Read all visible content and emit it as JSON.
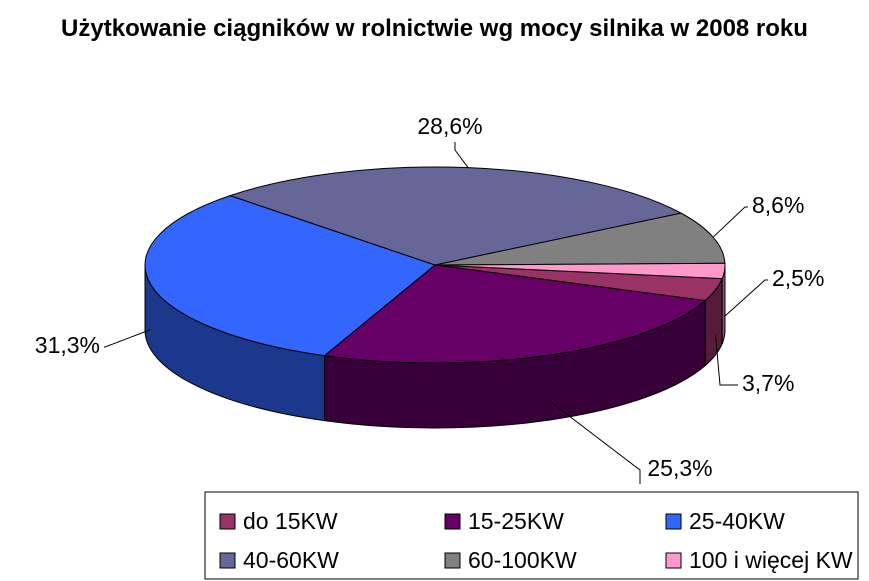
{
  "chart_data": {
    "type": "pie3d",
    "title": "Użytkowanie ciągników w rolnictwie wg mocy silnika w 2008 roku",
    "categories": [
      "do 15KW",
      "15-25KW",
      "25-40KW",
      "40-60KW",
      "60-100KW",
      "100 i więcej KW"
    ],
    "values": [
      3.7,
      25.3,
      31.3,
      28.6,
      8.6,
      2.5
    ],
    "value_labels": [
      "3,7%",
      "25,3%",
      "31,3%",
      "28,6%",
      "8,6%",
      "2,5%"
    ],
    "colors": [
      "#993366",
      "#660066",
      "#3366ff",
      "#666699",
      "#808080",
      "#ff99cc"
    ],
    "legend": "bottom"
  }
}
